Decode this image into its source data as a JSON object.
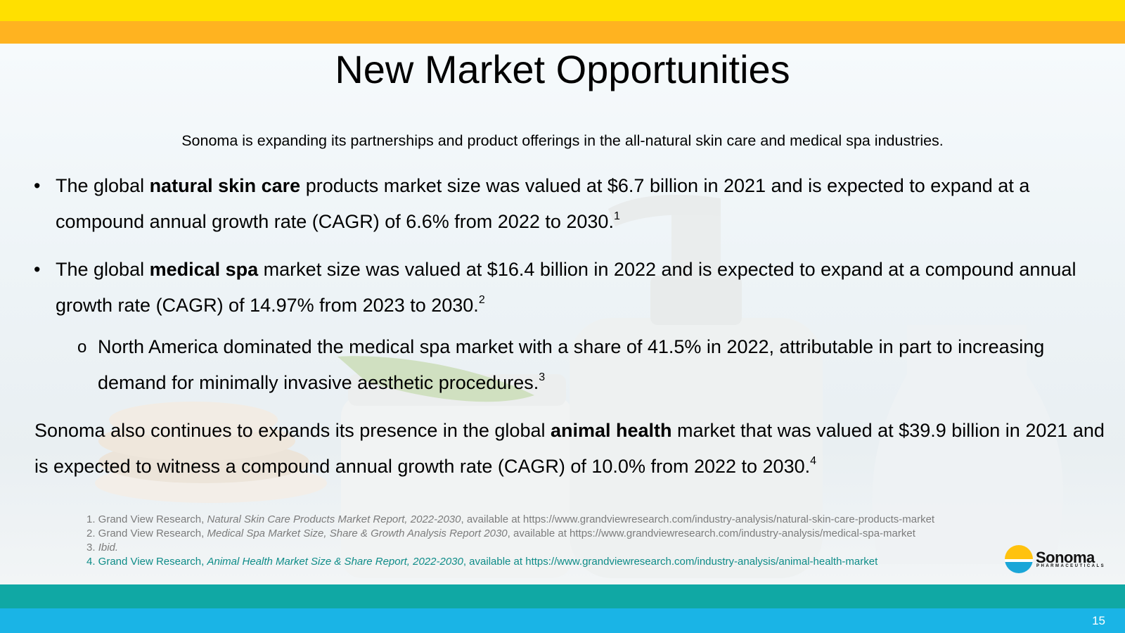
{
  "title": "New Market Opportunities",
  "subtitle": "Sonoma is expanding its partnerships and product offerings in the all-natural skin care and medical spa industries.",
  "bullets": [
    {
      "marker": "•",
      "pre": "The global ",
      "bold": "natural skin care",
      "post": " products market size was valued at $6.7 billion in 2021 and is expected to expand at a compound annual growth rate (CAGR) of 6.6% from 2022 to 2030.",
      "ref": "1"
    },
    {
      "marker": "•",
      "pre": "The global ",
      "bold": "medical spa",
      "post": " market size was valued at $16.4 billion in 2022 and is expected to expand at a compound annual growth rate (CAGR) of 14.97% from 2023 to 2030.",
      "ref": "2"
    },
    {
      "marker": "o",
      "text": "North America dominated the medical spa market with a share of 41.5% in 2022, attributable in part to increasing demand for minimally invasive aesthetic procedures.",
      "ref": "3"
    }
  ],
  "closing": {
    "pre": "Sonoma also continues to expands its presence in the global ",
    "bold": "animal health",
    "post": " market that was valued at $39.9 billion in 2021 and is expected to witness a compound annual growth rate (CAGR) of 10.0% from 2022 to 2030.",
    "ref": "4"
  },
  "footnotes": [
    {
      "pre": "1. Grand View Research, ",
      "italic": "Natural Skin Care Products Market Report, 2022-2030",
      "post": ", available at https://www.grandviewresearch.com/industry-analysis/natural-skin-care-products-market"
    },
    {
      "pre": "2. Grand View Research, ",
      "italic": "Medical Spa Market Size, Share & Growth Analysis Report 2030",
      "post": ", available at https://www.grandviewresearch.com/industry-analysis/medical-spa-market"
    },
    {
      "pre": "3. ",
      "italic": "Ibid.",
      "post": ""
    },
    {
      "pre": "4.  Grand View Research, ",
      "italic": "Animal Health Market Size & Share Report, 2022-2030",
      "post": ", available at https://www.grandviewresearch.com/industry-analysis/animal-health-market"
    }
  ],
  "logo": {
    "name": "Sonoma",
    "tagline": "PHARMACEUTICALS"
  },
  "page_number": "15",
  "colors": {
    "top_band": "#FFE000",
    "second_band": "#FFB320",
    "teal_band": "#10A8A4",
    "bottom_band": "#1AB4E6"
  }
}
